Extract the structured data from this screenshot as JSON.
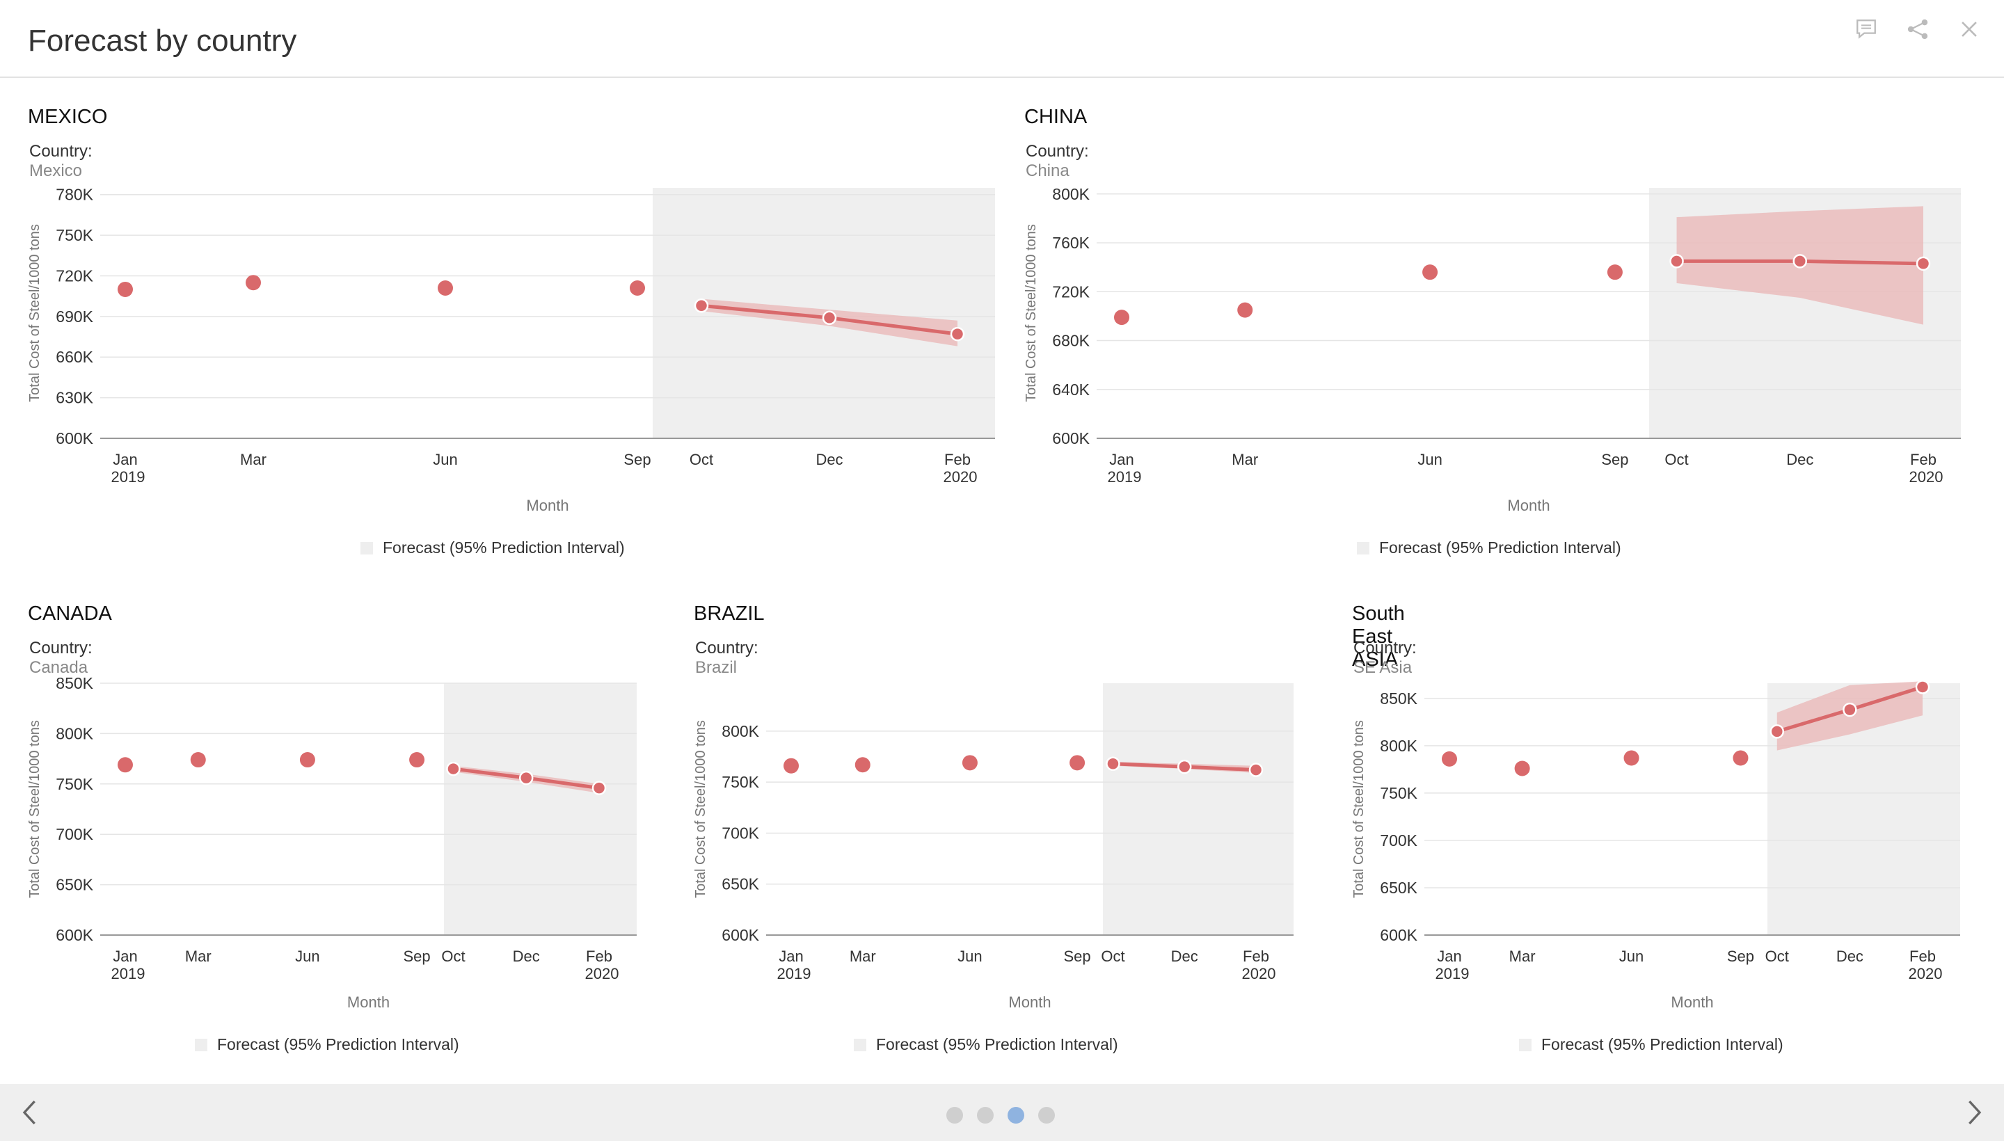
{
  "page": {
    "title": "Forecast by country",
    "icons": [
      "comment-icon",
      "share-icon",
      "close-icon"
    ]
  },
  "colors": {
    "accent": "#d9696b",
    "band": "#eab5b5",
    "forecast_bg": "#efefef",
    "grid": "#e5e5e5",
    "dot_active": "#8fb3e0",
    "dot_inactive": "#cfcfcf"
  },
  "chart_data": [
    {
      "type": "line",
      "title": "MEXICO",
      "filter_label": "Country:",
      "filter_value": "Mexico",
      "xlabel": "Month",
      "ylabel": "Total Cost of Steel/1000 tons",
      "x_ticks": [
        {
          "month": "2019-01",
          "label": "Jan",
          "sub": "2019"
        },
        {
          "month": "2019-03",
          "label": "Mar",
          "sub": ""
        },
        {
          "month": "2019-06",
          "label": "Jun",
          "sub": ""
        },
        {
          "month": "2019-09",
          "label": "Sep",
          "sub": ""
        },
        {
          "month": "2019-10",
          "label": "Oct",
          "sub": ""
        },
        {
          "month": "2019-12",
          "label": "Dec",
          "sub": ""
        },
        {
          "month": "2020-02",
          "label": "Feb",
          "sub": "2020"
        }
      ],
      "y_ticks": [
        "600K",
        "630K",
        "660K",
        "690K",
        "720K",
        "750K",
        "780K"
      ],
      "ylim": [
        600000,
        785000
      ],
      "actual": [
        {
          "x": "2019-01",
          "y": 710000
        },
        {
          "x": "2019-03",
          "y": 715000
        },
        {
          "x": "2019-06",
          "y": 711000
        },
        {
          "x": "2019-09",
          "y": 711000
        }
      ],
      "forecast": [
        {
          "x": "2019-10",
          "y": 698000,
          "lower": 694000,
          "upper": 703000
        },
        {
          "x": "2019-12",
          "y": 689000,
          "lower": 683000,
          "upper": 695000
        },
        {
          "x": "2020-02",
          "y": 677000,
          "lower": 668000,
          "upper": 687000
        }
      ],
      "forecast_region_start": "2019-09",
      "legend": "Forecast (95% Prediction Interval)"
    },
    {
      "type": "line",
      "title": "CHINA",
      "filter_label": "Country:",
      "filter_value": "China",
      "xlabel": "Month",
      "ylabel": "Total Cost of Steel/1000 tons",
      "x_ticks": [
        {
          "month": "2019-01",
          "label": "Jan",
          "sub": "2019"
        },
        {
          "month": "2019-03",
          "label": "Mar",
          "sub": ""
        },
        {
          "month": "2019-06",
          "label": "Jun",
          "sub": ""
        },
        {
          "month": "2019-09",
          "label": "Sep",
          "sub": ""
        },
        {
          "month": "2019-10",
          "label": "Oct",
          "sub": ""
        },
        {
          "month": "2019-12",
          "label": "Dec",
          "sub": ""
        },
        {
          "month": "2020-02",
          "label": "Feb",
          "sub": "2020"
        }
      ],
      "y_ticks": [
        "600K",
        "640K",
        "680K",
        "720K",
        "760K",
        "800K"
      ],
      "ylim": [
        600000,
        805000
      ],
      "actual": [
        {
          "x": "2019-01",
          "y": 699000
        },
        {
          "x": "2019-03",
          "y": 705000
        },
        {
          "x": "2019-06",
          "y": 736000
        },
        {
          "x": "2019-09",
          "y": 736000
        }
      ],
      "forecast": [
        {
          "x": "2019-10",
          "y": 745000,
          "lower": 727000,
          "upper": 781000
        },
        {
          "x": "2019-12",
          "y": 745000,
          "lower": 715000,
          "upper": 786000
        },
        {
          "x": "2020-02",
          "y": 743000,
          "lower": 693000,
          "upper": 790000
        }
      ],
      "forecast_region_start": "2019-09",
      "legend": "Forecast (95% Prediction Interval)"
    },
    {
      "type": "line",
      "title": "CANADA",
      "filter_label": "Country:",
      "filter_value": "Canada",
      "xlabel": "Month",
      "ylabel": "Total Cost of Steel/1000 tons",
      "x_ticks": [
        {
          "month": "2019-01",
          "label": "Jan",
          "sub": "2019"
        },
        {
          "month": "2019-03",
          "label": "Mar",
          "sub": ""
        },
        {
          "month": "2019-06",
          "label": "Jun",
          "sub": ""
        },
        {
          "month": "2019-09",
          "label": "Sep",
          "sub": ""
        },
        {
          "month": "2019-10",
          "label": "Oct",
          "sub": ""
        },
        {
          "month": "2019-12",
          "label": "Dec",
          "sub": ""
        },
        {
          "month": "2020-02",
          "label": "Feb",
          "sub": "2020"
        }
      ],
      "y_ticks": [
        "600K",
        "650K",
        "700K",
        "750K",
        "800K",
        "850K"
      ],
      "ylim": [
        600000,
        850000
      ],
      "actual": [
        {
          "x": "2019-01",
          "y": 769000
        },
        {
          "x": "2019-03",
          "y": 774000
        },
        {
          "x": "2019-06",
          "y": 774000
        },
        {
          "x": "2019-09",
          "y": 774000
        }
      ],
      "forecast": [
        {
          "x": "2019-10",
          "y": 765000,
          "lower": 762000,
          "upper": 768000
        },
        {
          "x": "2019-12",
          "y": 756000,
          "lower": 752000,
          "upper": 760000
        },
        {
          "x": "2020-02",
          "y": 746000,
          "lower": 741000,
          "upper": 750000
        }
      ],
      "forecast_region_start": "2019-09",
      "legend": "Forecast (95% Prediction Interval)"
    },
    {
      "type": "line",
      "title": "BRAZIL",
      "filter_label": "Country:",
      "filter_value": "Brazil",
      "xlabel": "Month",
      "ylabel": "Total Cost of Steel/1000 tons",
      "x_ticks": [
        {
          "month": "2019-01",
          "label": "Jan",
          "sub": "2019"
        },
        {
          "month": "2019-03",
          "label": "Mar",
          "sub": ""
        },
        {
          "month": "2019-06",
          "label": "Jun",
          "sub": ""
        },
        {
          "month": "2019-09",
          "label": "Sep",
          "sub": ""
        },
        {
          "month": "2019-10",
          "label": "Oct",
          "sub": ""
        },
        {
          "month": "2019-12",
          "label": "Dec",
          "sub": ""
        },
        {
          "month": "2020-02",
          "label": "Feb",
          "sub": "2020"
        }
      ],
      "y_ticks": [
        "600K",
        "650K",
        "700K",
        "750K",
        "800K"
      ],
      "ylim": [
        600000,
        847000
      ],
      "actual": [
        {
          "x": "2019-01",
          "y": 766000
        },
        {
          "x": "2019-03",
          "y": 767000
        },
        {
          "x": "2019-06",
          "y": 769000
        },
        {
          "x": "2019-09",
          "y": 769000
        }
      ],
      "forecast": [
        {
          "x": "2019-10",
          "y": 768000,
          "lower": 766000,
          "upper": 770000
        },
        {
          "x": "2019-12",
          "y": 765000,
          "lower": 763000,
          "upper": 768000
        },
        {
          "x": "2020-02",
          "y": 762000,
          "lower": 759000,
          "upper": 766000
        }
      ],
      "forecast_region_start": "2019-09",
      "legend": "Forecast (95% Prediction Interval)"
    },
    {
      "type": "line",
      "title": "South East ASIA",
      "filter_label": "Country:",
      "filter_value": "SE Asia",
      "xlabel": "Month",
      "ylabel": "Total Cost of Steel/1000 tons",
      "x_ticks": [
        {
          "month": "2019-01",
          "label": "Jan",
          "sub": "2019"
        },
        {
          "month": "2019-03",
          "label": "Mar",
          "sub": ""
        },
        {
          "month": "2019-06",
          "label": "Jun",
          "sub": ""
        },
        {
          "month": "2019-09",
          "label": "Sep",
          "sub": ""
        },
        {
          "month": "2019-10",
          "label": "Oct",
          "sub": ""
        },
        {
          "month": "2019-12",
          "label": "Dec",
          "sub": ""
        },
        {
          "month": "2020-02",
          "label": "Feb",
          "sub": "2020"
        }
      ],
      "y_ticks": [
        "600K",
        "650K",
        "700K",
        "750K",
        "800K",
        "850K"
      ],
      "ylim": [
        600000,
        866000
      ],
      "actual": [
        {
          "x": "2019-01",
          "y": 786000
        },
        {
          "x": "2019-03",
          "y": 776000
        },
        {
          "x": "2019-06",
          "y": 787000
        },
        {
          "x": "2019-09",
          "y": 787000
        }
      ],
      "forecast": [
        {
          "x": "2019-10",
          "y": 815000,
          "lower": 795000,
          "upper": 835000
        },
        {
          "x": "2019-12",
          "y": 838000,
          "lower": 812000,
          "upper": 864000
        },
        {
          "x": "2020-02",
          "y": 862000,
          "lower": 832000,
          "upper": 868000
        }
      ],
      "forecast_region_start": "2019-09",
      "legend": "Forecast (95% Prediction Interval)"
    }
  ],
  "footer": {
    "pages": 4,
    "current_page": 3
  }
}
